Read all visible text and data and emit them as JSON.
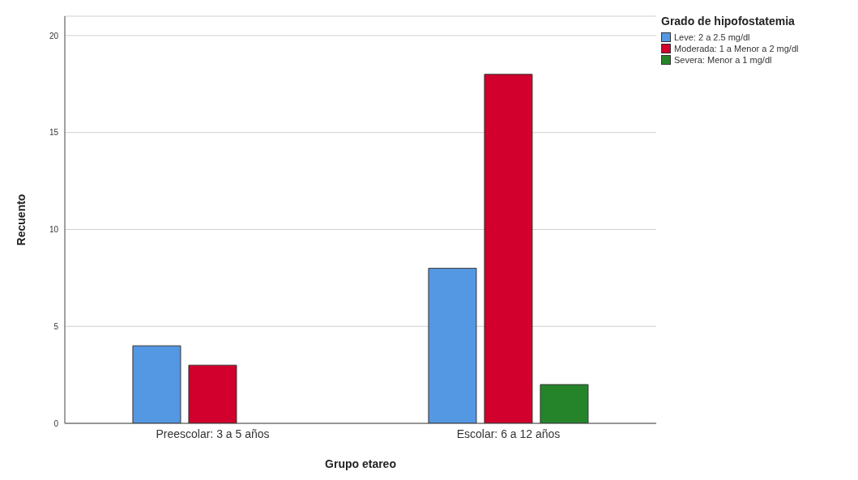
{
  "chart_data": {
    "type": "bar",
    "xlabel": "Grupo etareo",
    "ylabel": "Recuento",
    "legend_title": "Grado de hipofostatemia",
    "categories": [
      "Preescolar: 3 a 5 años",
      "Escolar: 6 a 12 años"
    ],
    "series": [
      {
        "name": "Leve: 2 a 2.5 mg/dl",
        "color": "#5497e3",
        "values": [
          4,
          8
        ]
      },
      {
        "name": "Moderada: 1 a Menor a 2 mg/dl",
        "color": "#d1002c",
        "values": [
          3,
          18
        ]
      },
      {
        "name": "Severa: Menor a 1 mg/dl",
        "color": "#25842a",
        "values": [
          0,
          2
        ]
      }
    ],
    "ylim": [
      0,
      21
    ],
    "yticks": [
      0,
      5,
      10,
      15,
      20
    ],
    "grid": "y",
    "legend": "top right"
  }
}
